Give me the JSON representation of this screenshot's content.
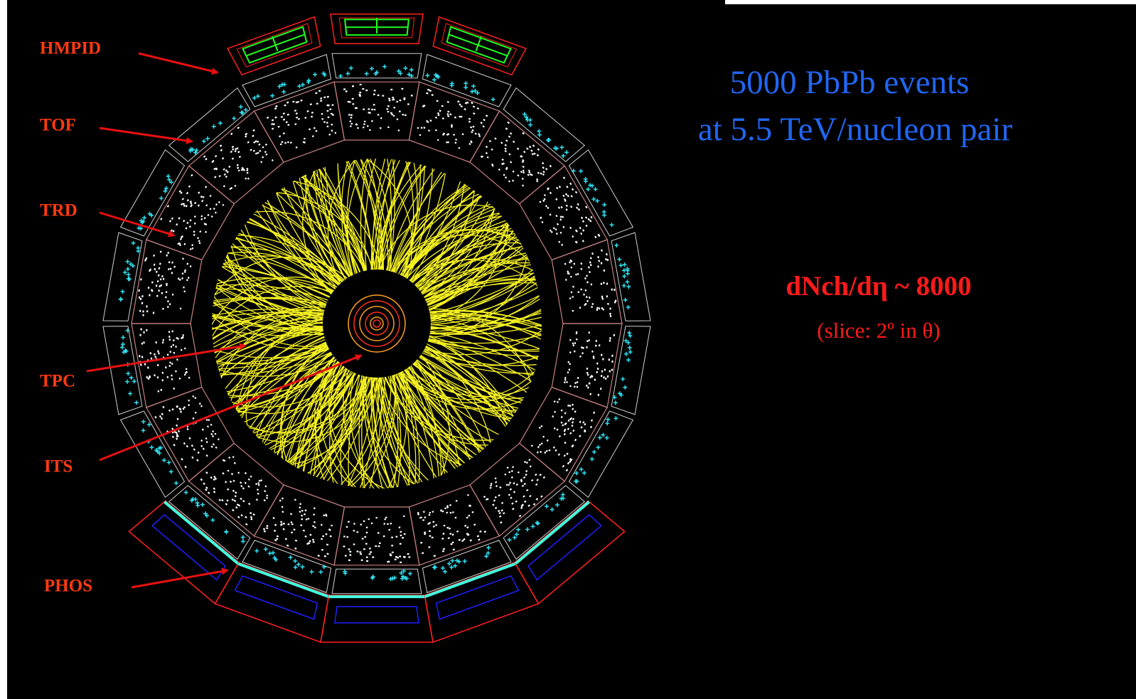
{
  "labels": {
    "hmpid": "HMPID",
    "tof": "TOF",
    "trd": "TRD",
    "tpc": "TPC",
    "its": "ITS",
    "phos": "PHOS"
  },
  "title": {
    "line1": "5000 PbPb events",
    "line2": "at 5.5 TeV/nucleon pair"
  },
  "note": {
    "multiplicity": "dNch/dη ~ 8000",
    "slice": "(slice: 2º in θ)"
  }
}
